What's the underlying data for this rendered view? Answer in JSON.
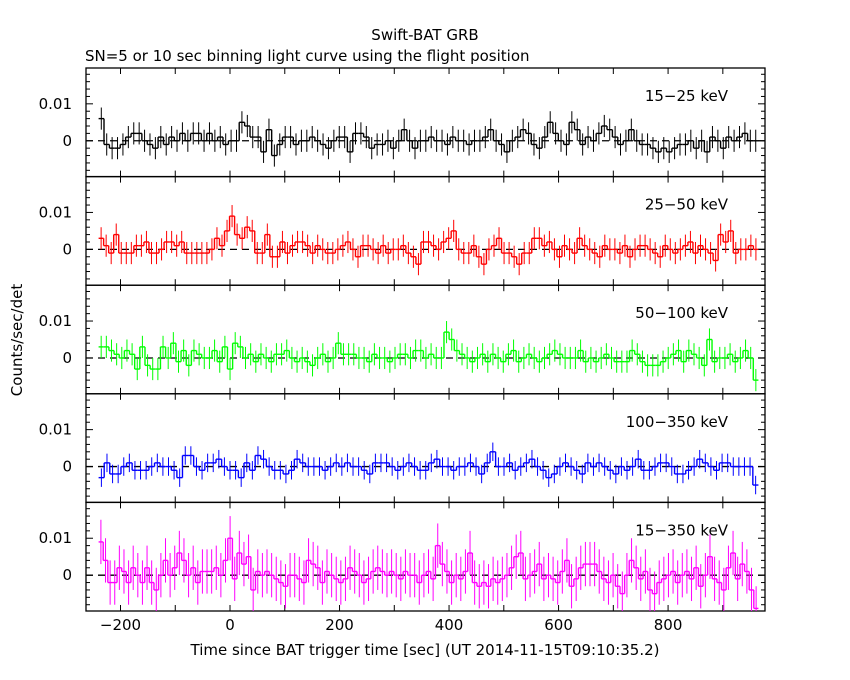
{
  "chart_data": {
    "type": "line",
    "title": "Swift-BAT GRB",
    "subtitle": "SN=5 or 10 sec binning light curve using the flight position",
    "xlabel": "Time since BAT trigger time [sec] (UT 2014-11-15T09:10:35.2)",
    "ylabel": "Counts/sec/det",
    "xlim": [
      -263,
      977
    ],
    "ylim": [
      -0.0097,
      0.0197
    ],
    "x_ticks": [
      -200,
      0,
      200,
      400,
      600,
      800
    ],
    "x_tick_labels": [
      "−200",
      "0",
      "200",
      "400",
      "600",
      "800"
    ],
    "y_ticks": [
      0,
      0.01
    ],
    "y_tick_labels": [
      "0",
      "0.01"
    ],
    "bin_range": [
      -240,
      965
    ],
    "series": [
      {
        "name": "15−25 keV",
        "color": "#000000",
        "error": 0.003,
        "values": [
          0.006,
          -0.001,
          -0.002,
          -0.002,
          -0.001,
          0.001,
          0.002,
          0.002,
          0,
          -0.001,
          -0.002,
          0.001,
          -0.001,
          0.001,
          0,
          0.002,
          0,
          0.002,
          0.002,
          0,
          0.002,
          0,
          0.001,
          -0.001,
          0,
          0,
          0.005,
          0.004,
          0.001,
          0.001,
          -0.003,
          0.003,
          -0.004,
          -0.001,
          0.001,
          0.001,
          -0.001,
          0,
          0,
          0.001,
          0,
          -0.001,
          -0.002,
          0,
          0.001,
          0.001,
          -0.003,
          0.002,
          0.002,
          0.001,
          -0.002,
          -0.001,
          -0.001,
          0,
          -0.002,
          0,
          0.003,
          0,
          -0.002,
          0,
          0,
          0.001,
          0,
          0,
          -0.001,
          0.001,
          0,
          0,
          -0.001,
          0,
          0,
          0.001,
          0.003,
          0,
          -0.001,
          -0.003,
          0,
          0.001,
          0.003,
          0.002,
          -0.001,
          -0.002,
          0.001,
          0.005,
          0.002,
          0,
          -0.001,
          0.005,
          0.003,
          -0.001,
          0.001,
          0,
          0.002,
          0.004,
          0.003,
          0.001,
          -0.001,
          0,
          0.003,
          0,
          -0.001,
          -0.001,
          -0.002,
          -0.003,
          -0.002,
          -0.003,
          -0.002,
          -0.001,
          -0.001,
          0,
          -0.002,
          0,
          -0.003,
          0.001,
          0,
          -0.002,
          0.001,
          0,
          0.001,
          0.002,
          0,
          0
        ]
      },
      {
        "name": "25−50 keV",
        "color": "#ff0000",
        "error": 0.003,
        "values": [
          0.003,
          0.001,
          -0.001,
          0.004,
          -0.001,
          -0.001,
          -0.001,
          0.001,
          0.001,
          0.002,
          -0.001,
          -0.001,
          0,
          0.002,
          0.002,
          0.001,
          0.002,
          -0.001,
          -0.001,
          -0.001,
          -0.001,
          -0.001,
          0,
          0.003,
          0.001,
          0.005,
          0.009,
          0.004,
          0.003,
          0.006,
          0.005,
          -0.001,
          -0.001,
          0.004,
          -0.002,
          -0.002,
          0.002,
          -0.001,
          0.001,
          0.002,
          0.002,
          0.001,
          -0.001,
          0.001,
          0,
          -0.001,
          -0.001,
          0,
          0.001,
          0.002,
          0,
          -0.002,
          0.001,
          0.001,
          0,
          -0.001,
          0.001,
          -0.001,
          0,
          0,
          0.001,
          -0.001,
          -0.002,
          -0.004,
          0.002,
          0.002,
          0.001,
          0,
          0.002,
          0.003,
          0.005,
          0,
          -0.001,
          -0.001,
          0.001,
          -0.002,
          -0.004,
          0,
          0.001,
          0.003,
          -0.001,
          -0.001,
          -0.002,
          -0.004,
          -0.001,
          -0.001,
          0.003,
          0.003,
          0.001,
          0.002,
          0,
          -0.002,
          0.001,
          0,
          -0.001,
          0.003,
          0.001,
          0,
          -0.001,
          -0.002,
          0.001,
          0,
          0,
          -0.001,
          0.001,
          -0.002,
          0,
          0.001,
          0.001,
          0,
          -0.001,
          -0.002,
          0.001,
          0,
          -0.001,
          0,
          0.001,
          0.002,
          -0.001,
          0.001,
          0,
          -0.001,
          -0.003,
          0.004,
          0.002,
          0.005,
          -0.001,
          0,
          0,
          0.001,
          0
        ]
      },
      {
        "name": "50−100 keV",
        "color": "#00ff00",
        "error": 0.003,
        "values": [
          0.003,
          0.003,
          0.002,
          0.001,
          0,
          0.002,
          0.001,
          -0.003,
          0.003,
          -0.002,
          -0.003,
          -0.003,
          0.003,
          0,
          0.004,
          -0.001,
          0.002,
          -0.002,
          0.002,
          0.001,
          0,
          0,
          0.002,
          -0.001,
          0.003,
          -0.003,
          0.004,
          0.003,
          0,
          0.001,
          -0.001,
          0.001,
          0,
          -0.001,
          0.001,
          0.001,
          0.002,
          0,
          -0.001,
          0,
          -0.001,
          -0.002,
          0,
          0.001,
          -0.001,
          0,
          0.004,
          0.001,
          0.001,
          0.001,
          0,
          0,
          -0.001,
          0.001,
          0,
          0,
          -0.001,
          0,
          0.001,
          0.001,
          0,
          0.002,
          0.002,
          0,
          0.001,
          0,
          0,
          0.007,
          0.005,
          0.002,
          0.001,
          0,
          -0.001,
          0,
          0.001,
          -0.001,
          0.001,
          0,
          -0.001,
          0.001,
          0.002,
          -0.001,
          0,
          0.001,
          0,
          -0.001,
          0,
          0.001,
          0.002,
          0.001,
          0,
          0,
          0,
          0.002,
          -0.001,
          0,
          -0.001,
          0,
          0.001,
          0,
          -0.001,
          -0.001,
          -0.001,
          0.002,
          0.001,
          -0.001,
          -0.002,
          -0.002,
          -0.002,
          -0.001,
          0,
          0.001,
          0.002,
          -0.001,
          0.002,
          0.001,
          0,
          -0.002,
          0.005,
          -0.001,
          0,
          0,
          0.001,
          -0.001,
          0,
          0.002,
          0,
          -0.006
        ]
      },
      {
        "name": "100−350 keV",
        "color": "#0000ff",
        "error": 0.0025,
        "values": [
          -0.003,
          0.001,
          -0.002,
          -0.002,
          0,
          0.001,
          -0.001,
          -0.001,
          -0.001,
          0,
          0.001,
          0,
          0,
          -0.001,
          -0.003,
          0.003,
          0.003,
          0,
          -0.001,
          0.001,
          0.001,
          0.002,
          0,
          -0.001,
          -0.001,
          -0.003,
          0.001,
          -0.001,
          0.003,
          0.002,
          0,
          -0.001,
          -0.001,
          -0.002,
          -0.001,
          0.002,
          0.001,
          0,
          0,
          0,
          -0.001,
          0,
          0.001,
          0,
          0.001,
          0,
          0,
          -0.001,
          -0.002,
          0.001,
          0.001,
          0.001,
          0,
          -0.001,
          0,
          0.001,
          0,
          -0.001,
          -0.001,
          0.001,
          0.002,
          0,
          0,
          -0.001,
          0,
          0,
          0.001,
          0,
          -0.002,
          0.001,
          0.004,
          0,
          0,
          0.001,
          -0.001,
          0,
          0.001,
          0.002,
          0,
          -0.001,
          -0.003,
          -0.002,
          0,
          0.001,
          0,
          -0.001,
          -0.002,
          0.001,
          0,
          0.001,
          0,
          -0.001,
          -0.002,
          0,
          -0.001,
          0,
          0.002,
          -0.001,
          -0.001,
          0,
          0.001,
          0.001,
          0,
          -0.002,
          -0.002,
          -0.001,
          0,
          0.002,
          0.001,
          0,
          -0.001,
          0.001,
          0.001,
          0,
          0,
          0,
          0,
          -0.005
        ]
      },
      {
        "name": "15−350 keV",
        "color": "#ff00ff",
        "error": 0.006,
        "values": [
          0.009,
          0.004,
          -0.002,
          -0.002,
          0.002,
          0.001,
          -0.002,
          0.002,
          0,
          -0.002,
          0.002,
          -0.002,
          -0.004,
          0,
          0.004,
          0,
          0.002,
          0.006,
          0.004,
          0,
          0.002,
          -0.002,
          0.001,
          0.001,
          0.001,
          0.002,
          0,
          0.004,
          0.01,
          -0.001,
          0.006,
          0.003,
          0.005,
          -0.004,
          0.001,
          0,
          0.001,
          0,
          -0.001,
          -0.002,
          -0.003,
          0,
          0,
          -0.001,
          -0.002,
          0.004,
          0.003,
          0.002,
          -0.002,
          0.001,
          0,
          -0.001,
          -0.002,
          -0.001,
          0.002,
          0.001,
          0,
          -0.002,
          -0.001,
          0.001,
          0.002,
          0.001,
          0,
          0.001,
          0,
          -0.001,
          0.001,
          0,
          0,
          -0.002,
          0,
          0.001,
          -0.001,
          0.008,
          0.003,
          0.001,
          -0.002,
          0,
          -0.001,
          0.001,
          0.006,
          -0.002,
          -0.003,
          -0.002,
          -0.003,
          -0.001,
          -0.002,
          -0.001,
          0,
          0.002,
          0.005,
          0.006,
          -0.001,
          0,
          0.001,
          0.003,
          -0.001,
          0,
          -0.001,
          -0.002,
          0.001,
          0.004,
          -0.003,
          -0.001,
          0.002,
          0.003,
          0.003,
          0.003,
          0.001,
          -0.001,
          -0.002,
          0,
          -0.003,
          -0.005,
          0,
          0.004,
          0.002,
          -0.001,
          0.001,
          -0.004,
          -0.005,
          -0.002,
          -0.001,
          0,
          0.001,
          -0.002,
          0,
          0.001,
          -0.001,
          0.002,
          -0.003,
          0,
          0.005,
          -0.001,
          -0.002,
          -0.004,
          0.002,
          0.006,
          -0.001,
          0.003,
          0.001,
          -0.004,
          -0.009
        ]
      }
    ]
  }
}
